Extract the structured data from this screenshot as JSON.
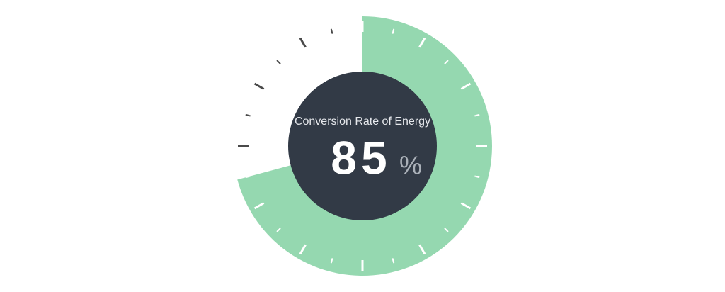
{
  "chart_data": {
    "type": "gauge",
    "title": "Conversion Rate of Energy",
    "value": 85,
    "unit": "%",
    "ylim": [
      0,
      100
    ],
    "color": "#95d8b0",
    "center_color": "#323a46"
  }
}
